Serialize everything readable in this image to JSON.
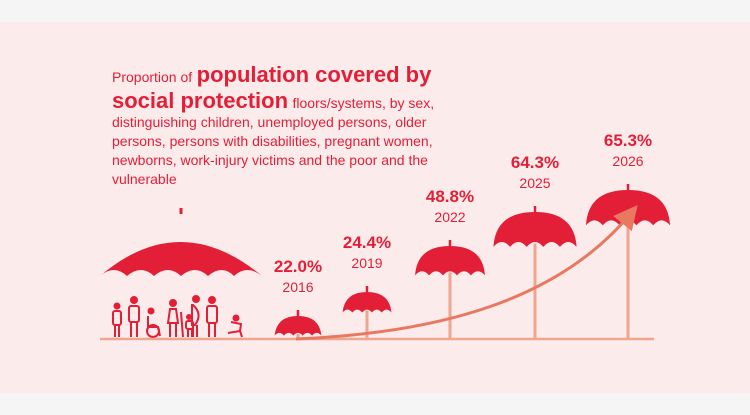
{
  "title": {
    "prefix": "Proportion of",
    "bold_line1": "population covered by",
    "bold_line2": "social protection",
    "description": "floors/systems, by sex, distinguishing children, unemployed persons, older persons, persons with disabilities, pregnant women, newborns, work-injury victims and the poor and the vulnerable"
  },
  "colors": {
    "accent": "#e31f37",
    "arrow": "#e8785f",
    "background": "#fcebeb",
    "pole": "#f0a58f"
  },
  "illustration": {
    "icon": "umbrella-with-people-icon"
  },
  "chart_data": {
    "type": "bar",
    "marker": "umbrella",
    "categories": [
      "2016",
      "2019",
      "2022",
      "2025",
      "2026"
    ],
    "values": [
      22.0,
      24.4,
      48.8,
      64.3,
      65.3
    ],
    "value_labels": [
      "22.0%",
      "24.4%",
      "48.8%",
      "64.3%",
      "65.3%"
    ],
    "trend_arrow": true
  }
}
